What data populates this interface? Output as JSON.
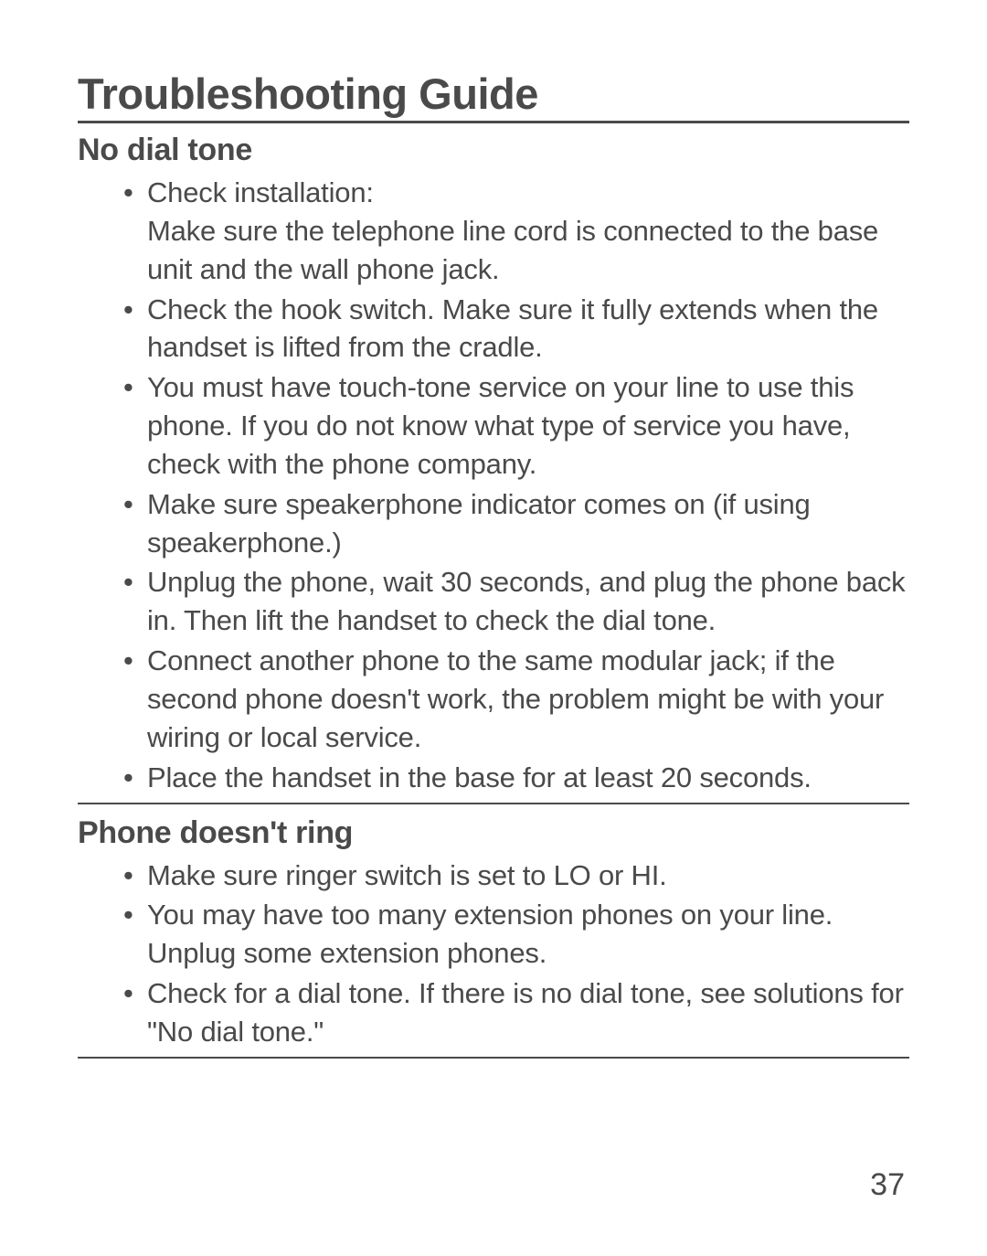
{
  "title": "Troubleshooting Guide",
  "sections": [
    {
      "heading": "No dial tone",
      "items": [
        "Check installation:\nMake sure the telephone line cord is connected to the base unit and the wall phone jack.",
        "Check the hook switch. Make sure it fully extends when the handset is lifted from the cradle.",
        "You must have touch-tone service on your line to use this phone. If you do not know what type of service you have, check with the phone company.",
        "Make sure speakerphone indicator comes on (if using speakerphone.)",
        "Unplug the phone, wait 30 seconds, and plug the phone back in. Then lift the handset to check the dial tone.",
        "Connect another phone to the same modular jack; if the second phone doesn't work, the problem might be with your wiring or local service.",
        "Place the handset in the base for at least 20 seconds."
      ]
    },
    {
      "heading": "Phone doesn't ring",
      "items": [
        "Make sure ringer switch is set to LO or HI.",
        "You may have too many extension phones on your line. Unplug some extension phones.",
        "Check for a dial tone. If there is no dial tone, see solutions for \"No dial tone.\""
      ]
    }
  ],
  "page_number": "37",
  "colors": {
    "text": "#4a4a4a",
    "background": "#ffffff",
    "rule": "#4a4a4a"
  },
  "typography": {
    "title_fontsize": 47,
    "section_fontsize": 34,
    "body_fontsize": 31,
    "pagenum_fontsize": 34,
    "line_height": 1.35
  }
}
